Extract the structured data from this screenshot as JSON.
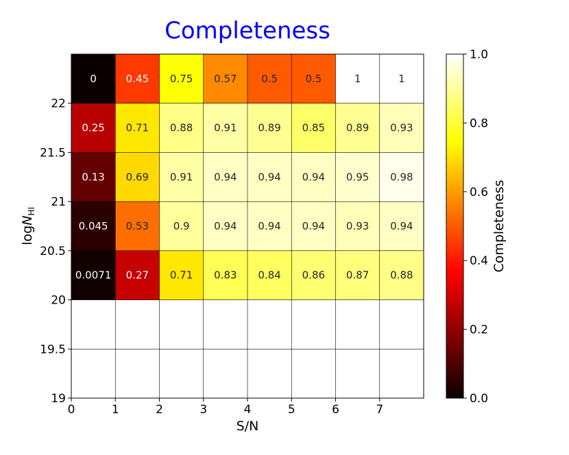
{
  "chart_data": {
    "type": "heatmap",
    "title": "Completeness",
    "title_color": "#0000ff",
    "xlabel": "S/N",
    "ylabel_main": "log",
    "ylabel_italic": "N",
    "ylabel_sub": "HI",
    "colorbar_label": "Completeness",
    "colormap": "hot",
    "xlim": [
      0,
      8
    ],
    "ylim": [
      19,
      22.5
    ],
    "x_edges": [
      0,
      1,
      2,
      3,
      4,
      5,
      6,
      7,
      8
    ],
    "y_edges": [
      19,
      19.5,
      20,
      20.5,
      21,
      21.5,
      22,
      22.5
    ],
    "x_ticks": [
      0,
      1,
      2,
      3,
      4,
      5,
      6,
      7
    ],
    "x_tick_labels": [
      "0",
      "1",
      "2",
      "3",
      "4",
      "5",
      "6",
      "7"
    ],
    "y_ticks": [
      19,
      19.5,
      20,
      20.5,
      21,
      21.5,
      22
    ],
    "y_tick_labels": [
      "19",
      "19.5",
      "20",
      "20.5",
      "21",
      "21.5",
      "22"
    ],
    "clim": [
      0,
      1
    ],
    "colorbar_ticks": [
      0,
      0.2,
      0.4,
      0.6,
      0.8,
      1.0
    ],
    "colorbar_tick_labels": [
      "0.0",
      "0.2",
      "0.4",
      "0.6",
      "0.8",
      "1.0"
    ],
    "cells": [
      {
        "row": "20-20.5",
        "values": [
          0.0071,
          0.27,
          0.71,
          0.83,
          0.84,
          0.86,
          0.87,
          0.88
        ],
        "labels": [
          "0.0071",
          "0.27",
          "0.71",
          "0.83",
          "0.84",
          "0.86",
          "0.87",
          "0.88"
        ]
      },
      {
        "row": "20.5-21",
        "values": [
          0.045,
          0.53,
          0.9,
          0.94,
          0.94,
          0.94,
          0.93,
          0.94
        ],
        "labels": [
          "0.045",
          "0.53",
          "0.9",
          "0.94",
          "0.94",
          "0.94",
          "0.93",
          "0.94"
        ]
      },
      {
        "row": "21-21.5",
        "values": [
          0.13,
          0.69,
          0.91,
          0.94,
          0.94,
          0.94,
          0.95,
          0.98
        ],
        "labels": [
          "0.13",
          "0.69",
          "0.91",
          "0.94",
          "0.94",
          "0.94",
          "0.95",
          "0.98"
        ]
      },
      {
        "row": "21.5-22",
        "values": [
          0.25,
          0.71,
          0.88,
          0.91,
          0.89,
          0.85,
          0.89,
          0.93
        ],
        "labels": [
          "0.25",
          "0.71",
          "0.88",
          "0.91",
          "0.89",
          "0.85",
          "0.89",
          "0.93"
        ]
      },
      {
        "row": "22-22.5",
        "values": [
          0,
          0.45,
          0.75,
          0.57,
          0.5,
          0.5,
          1,
          1
        ],
        "labels": [
          "0",
          "0.45",
          "0.75",
          "0.57",
          "0.5",
          "0.5",
          "1",
          "1"
        ]
      }
    ],
    "empty_rows": [
      "19-19.5",
      "19.5-20"
    ],
    "grid": true
  }
}
